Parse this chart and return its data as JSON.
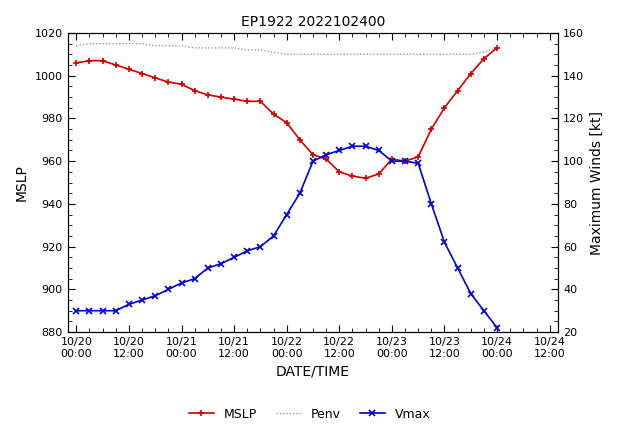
{
  "title": "EP1922 2022102400",
  "xlabel": "DATE/TIME",
  "ylabel_left": "MSLP",
  "ylabel_right": "Maximum Winds [kt]",
  "ylim_left": [
    880,
    1020
  ],
  "ylim_right": [
    20,
    160
  ],
  "yticks_left": [
    880,
    900,
    920,
    940,
    960,
    980,
    1000,
    1020
  ],
  "yticks_right": [
    20,
    40,
    60,
    80,
    100,
    120,
    140,
    160
  ],
  "xtick_hours": [
    0,
    12,
    24,
    36,
    48,
    60,
    72,
    84,
    96,
    108
  ],
  "xtick_labels": [
    "10/20\n00:00",
    "10/20\n12:00",
    "10/21\n00:00",
    "10/21\n12:00",
    "10/22\n00:00",
    "10/22\n12:00",
    "10/23\n00:00",
    "10/23\n12:00",
    "10/24\n00:00",
    "10/24\n12:00"
  ],
  "xlim": [
    -2,
    110
  ],
  "mslp_hours": [
    0,
    3,
    6,
    9,
    12,
    15,
    18,
    21,
    24,
    27,
    30,
    33,
    36,
    39,
    42,
    45,
    48,
    51,
    54,
    57,
    60,
    63,
    66,
    69,
    72,
    75,
    78,
    81,
    84,
    87,
    90,
    93,
    96
  ],
  "mslp_values": [
    1006,
    1007,
    1007,
    1005,
    1003,
    1001,
    999,
    997,
    996,
    993,
    991,
    990,
    989,
    988,
    988,
    982,
    978,
    970,
    963,
    961,
    955,
    953,
    952,
    954,
    961,
    960,
    962,
    975,
    985,
    993,
    1001,
    1008,
    1013
  ],
  "penv_hours": [
    0,
    3,
    6,
    9,
    12,
    15,
    18,
    21,
    24,
    27,
    30,
    33,
    36,
    39,
    42,
    45,
    48,
    51,
    54,
    57,
    60,
    63,
    66,
    69,
    72,
    75,
    78,
    81,
    84,
    87,
    90,
    93,
    96
  ],
  "penv_values": [
    1014,
    1015,
    1015,
    1015,
    1015,
    1015,
    1014,
    1014,
    1014,
    1013,
    1013,
    1013,
    1013,
    1012,
    1012,
    1011,
    1010,
    1010,
    1010,
    1010,
    1010,
    1010,
    1010,
    1010,
    1010,
    1010,
    1010,
    1010,
    1010,
    1010,
    1010,
    1011,
    1013
  ],
  "vmax_hours": [
    0,
    3,
    6,
    9,
    12,
    15,
    18,
    21,
    24,
    27,
    30,
    33,
    36,
    39,
    42,
    45,
    48,
    51,
    54,
    57,
    60,
    63,
    66,
    69,
    72,
    75,
    78,
    81,
    84,
    87,
    90,
    93,
    96
  ],
  "vmax_values": [
    30,
    30,
    30,
    30,
    33,
    35,
    37,
    40,
    43,
    45,
    50,
    52,
    55,
    58,
    60,
    65,
    75,
    85,
    100,
    103,
    105,
    107,
    107,
    105,
    100,
    100,
    99,
    80,
    62,
    50,
    38,
    30,
    22
  ],
  "mslp_color": "#cc0000",
  "penv_color": "#888888",
  "vmax_color": "#0000cc",
  "bg_color": "#ffffff"
}
